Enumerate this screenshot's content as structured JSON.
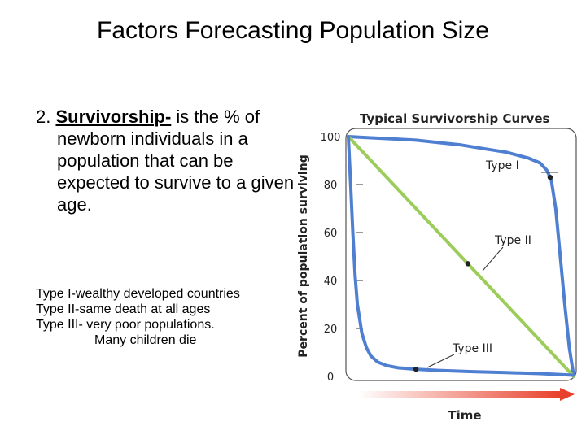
{
  "slide": {
    "title": "Factors Forecasting Population Size",
    "definition": {
      "number": "2.",
      "term": "Survivorship-",
      "rest": " is the % of newborn individuals in a population that can be expected to survive to a given age."
    },
    "types": [
      {
        "text": "Type I-wealthy developed countries"
      },
      {
        "text": "Type II-same death at all ages"
      },
      {
        "first": "Type III- very poor populations.",
        "second": "Many children die"
      }
    ]
  },
  "chart_data": {
    "type": "line",
    "title": "Typical Survivorship Curves",
    "xlabel": "Time",
    "ylabel": "Percent of population surviving",
    "ylim": [
      0,
      100
    ],
    "yticks": [
      "0",
      "20",
      "40",
      "60",
      "80",
      "100"
    ],
    "series": [
      {
        "name": "Type I",
        "color": "#4f7fd0",
        "x": [
          0,
          10,
          20,
          30,
          40,
          50,
          60,
          70,
          80,
          85,
          88,
          90,
          92,
          94,
          96,
          98,
          100
        ],
        "y": [
          100,
          99.5,
          99,
          98.5,
          97.5,
          96.5,
          95,
          93.5,
          91,
          89,
          86,
          82,
          70,
          50,
          30,
          12,
          0
        ]
      },
      {
        "name": "Type II",
        "color": "#9ccc5a",
        "x": [
          0,
          100
        ],
        "y": [
          100,
          0
        ]
      },
      {
        "name": "Type III",
        "color": "#4f7fd0",
        "x": [
          0,
          1,
          2,
          3,
          4,
          6,
          8,
          10,
          13,
          17,
          22,
          30,
          40,
          55,
          70,
          85,
          100
        ],
        "y": [
          100,
          80,
          60,
          42,
          30,
          18,
          12,
          8.5,
          6,
          4.5,
          3.6,
          3,
          2.5,
          2,
          1.6,
          1.2,
          0.5
        ]
      }
    ],
    "markers": [
      {
        "series": "Type I",
        "x": 89.5,
        "y": 83
      },
      {
        "series": "Type II",
        "x": 53,
        "y": 47
      },
      {
        "series": "Type III",
        "x": 30,
        "y": 3
      }
    ]
  }
}
